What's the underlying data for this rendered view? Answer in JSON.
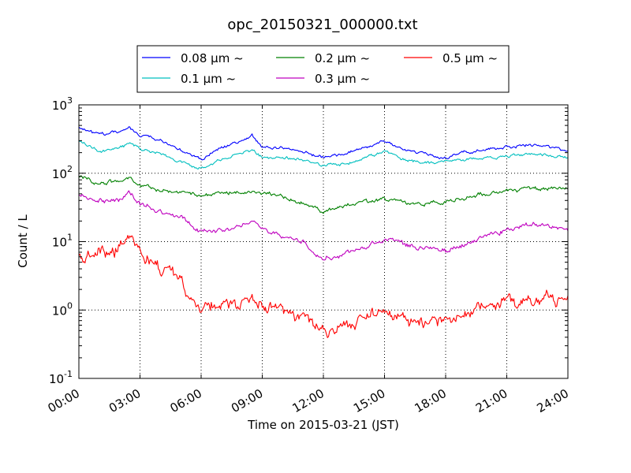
{
  "chart_data": {
    "type": "line",
    "title": "opc_20150321_000000.txt",
    "xlabel": "Time on 2015-03-21 (JST)",
    "ylabel": "Count / L",
    "x_unit": "hours",
    "xlim": [
      0,
      24
    ],
    "ylim": [
      0.1,
      1000
    ],
    "yscale": "log",
    "grid": true,
    "legend_position": "top-center",
    "x_tick_labels": [
      "00:00",
      "03:00",
      "06:00",
      "09:00",
      "12:00",
      "15:00",
      "18:00",
      "21:00",
      "24:00"
    ],
    "y_tick_labels": [
      {
        "base": "10",
        "exp": "-1"
      },
      {
        "base": "10",
        "exp": "0"
      },
      {
        "base": "10",
        "exp": "1"
      },
      {
        "base": "10",
        "exp": "2"
      },
      {
        "base": "10",
        "exp": "3"
      }
    ],
    "x": [
      0,
      1,
      2,
      2.5,
      3,
      4,
      5,
      6,
      7,
      8,
      8.5,
      9,
      10,
      11,
      12,
      13,
      14,
      15,
      16,
      17,
      18,
      19,
      20,
      21,
      22,
      23,
      24
    ],
    "series": [
      {
        "name": "0.08 μm ~",
        "color": "#0000ff",
        "noise": 0.015,
        "values": [
          480,
          360,
          400,
          470,
          370,
          300,
          220,
          160,
          240,
          290,
          350,
          240,
          230,
          210,
          170,
          190,
          240,
          290,
          220,
          190,
          170,
          200,
          220,
          240,
          260,
          250,
          210
        ]
      },
      {
        "name": "0.1 μm ~",
        "color": "#00bfbf",
        "noise": 0.015,
        "values": [
          300,
          210,
          230,
          280,
          230,
          190,
          150,
          115,
          160,
          200,
          220,
          170,
          170,
          160,
          130,
          140,
          165,
          210,
          160,
          140,
          150,
          160,
          165,
          175,
          195,
          185,
          165
        ]
      },
      {
        "name": "0.2 μm ~",
        "color": "#008000",
        "noise": 0.02,
        "values": [
          92,
          72,
          75,
          88,
          65,
          58,
          52,
          46,
          52,
          55,
          55,
          50,
          45,
          38,
          27,
          33,
          38,
          42,
          37,
          35,
          38,
          45,
          50,
          55,
          60,
          60,
          58
        ]
      },
      {
        "name": "0.3 μm ~",
        "color": "#bf00bf",
        "noise": 0.025,
        "values": [
          48,
          40,
          42,
          50,
          36,
          28,
          22,
          14,
          15,
          17,
          18,
          15,
          12,
          10,
          5.5,
          6.8,
          8.5,
          11,
          9,
          8.5,
          7.5,
          9,
          12,
          15,
          17,
          17,
          15
        ]
      },
      {
        "name": "0.5 μm ~",
        "color": "#ff0000",
        "noise": 0.06,
        "values": [
          6,
          6.8,
          8,
          10.5,
          7,
          4,
          2.6,
          1.1,
          1.2,
          1.3,
          1.5,
          1.1,
          1.0,
          0.75,
          0.5,
          0.6,
          0.75,
          0.95,
          0.75,
          0.65,
          0.65,
          0.9,
          1.1,
          1.25,
          1.35,
          1.45,
          1.3
        ]
      }
    ]
  }
}
